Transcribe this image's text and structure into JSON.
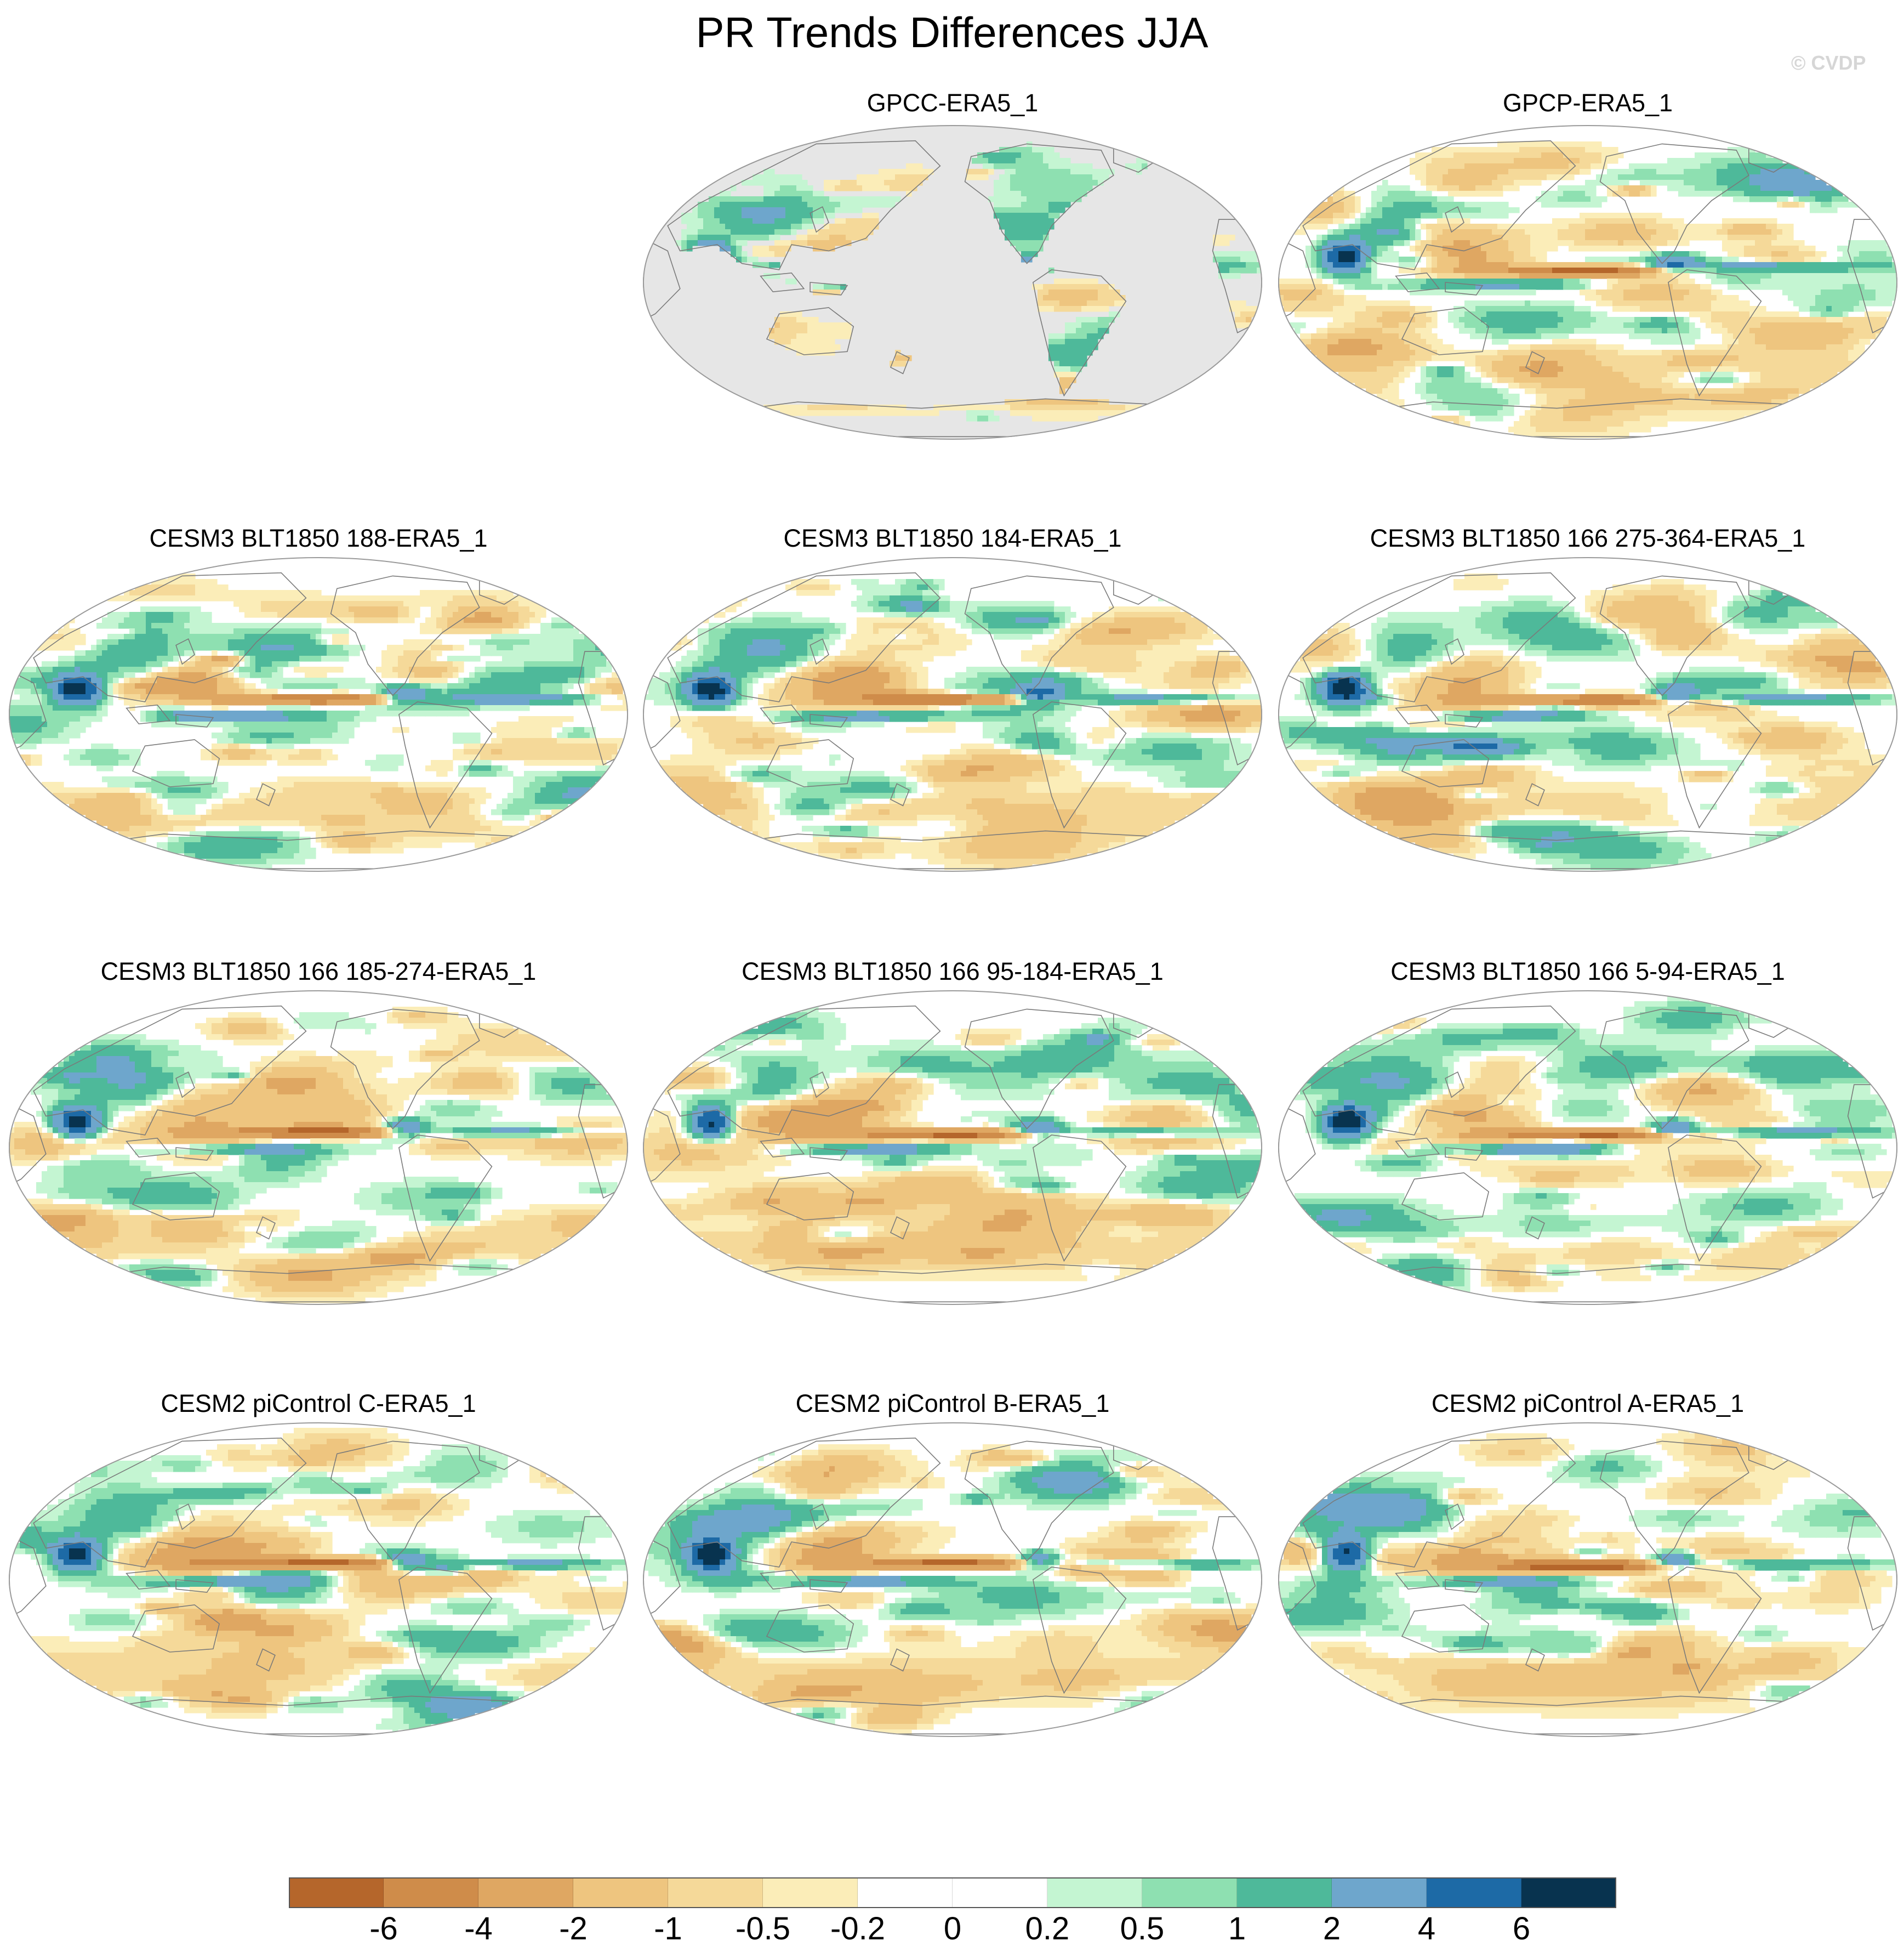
{
  "title": "PR Trends Differences JJA",
  "watermark": "© CVDP",
  "panels": [
    {
      "label": "GPCC-ERA5_1",
      "row": 0,
      "col": 1,
      "variant": "obs-land",
      "seed": 3
    },
    {
      "label": "GPCP-ERA5_1",
      "row": 0,
      "col": 2,
      "variant": "full",
      "seed": 11
    },
    {
      "label": "CESM3 BLT1850 188-ERA5_1",
      "row": 1,
      "col": 0,
      "variant": "full",
      "seed": 21
    },
    {
      "label": "CESM3 BLT1850 184-ERA5_1",
      "row": 1,
      "col": 1,
      "variant": "full",
      "seed": 29
    },
    {
      "label": "CESM3 BLT1850 166 275-364-ERA5_1",
      "row": 1,
      "col": 2,
      "variant": "full",
      "seed": 37
    },
    {
      "label": "CESM3 BLT1850 166 185-274-ERA5_1",
      "row": 2,
      "col": 0,
      "variant": "full",
      "seed": 43
    },
    {
      "label": "CESM3 BLT1850 166 95-184-ERA5_1",
      "row": 2,
      "col": 1,
      "variant": "full",
      "seed": 53
    },
    {
      "label": "CESM3 BLT1850 166 5-94-ERA5_1",
      "row": 2,
      "col": 2,
      "variant": "full",
      "seed": 61
    },
    {
      "label": "CESM2 piControl C-ERA5_1",
      "row": 3,
      "col": 0,
      "variant": "full",
      "seed": 71
    },
    {
      "label": "CESM2 piControl B-ERA5_1",
      "row": 3,
      "col": 1,
      "variant": "full",
      "seed": 79
    },
    {
      "label": "CESM2 piControl A-ERA5_1",
      "row": 3,
      "col": 2,
      "variant": "full",
      "seed": 89
    }
  ],
  "colorbar": {
    "levels": [
      "-6",
      "-4",
      "-2",
      "-1",
      "-0.5",
      "-0.2",
      "0",
      "0.2",
      "0.5",
      "1",
      "2",
      "4",
      "6"
    ],
    "colors": [
      "#b5662b",
      "#cf8c4a",
      "#dfa762",
      "#eec57f",
      "#f5d999",
      "#fbedb8",
      "#ffffff",
      "#ffffff",
      "#c4f5d2",
      "#8ee0b1",
      "#4eb99a",
      "#6ea6cc",
      "#1d6aa6",
      "#08334f"
    ]
  },
  "chart_data": {
    "type": "heatmap",
    "title": "PR Trends Differences JJA",
    "variable": "PR",
    "season": "JJA",
    "projection": "Robinson (Pacific-centred)",
    "contour_levels": [
      -6,
      -4,
      -2,
      -1,
      -0.5,
      -0.2,
      0,
      0.2,
      0.5,
      1,
      2,
      4,
      6
    ],
    "panels": [
      "GPCC-ERA5_1",
      "GPCP-ERA5_1",
      "CESM3 BLT1850 188-ERA5_1",
      "CESM3 BLT1850 184-ERA5_1",
      "CESM3 BLT1850 166 275-364-ERA5_1",
      "CESM3 BLT1850 166 185-274-ERA5_1",
      "CESM3 BLT1850 166 95-184-ERA5_1",
      "CESM3 BLT1850 166 5-94-ERA5_1",
      "CESM2 piControl C-ERA5_1",
      "CESM2 piControl B-ERA5_1",
      "CESM2 piControl A-ERA5_1"
    ]
  }
}
